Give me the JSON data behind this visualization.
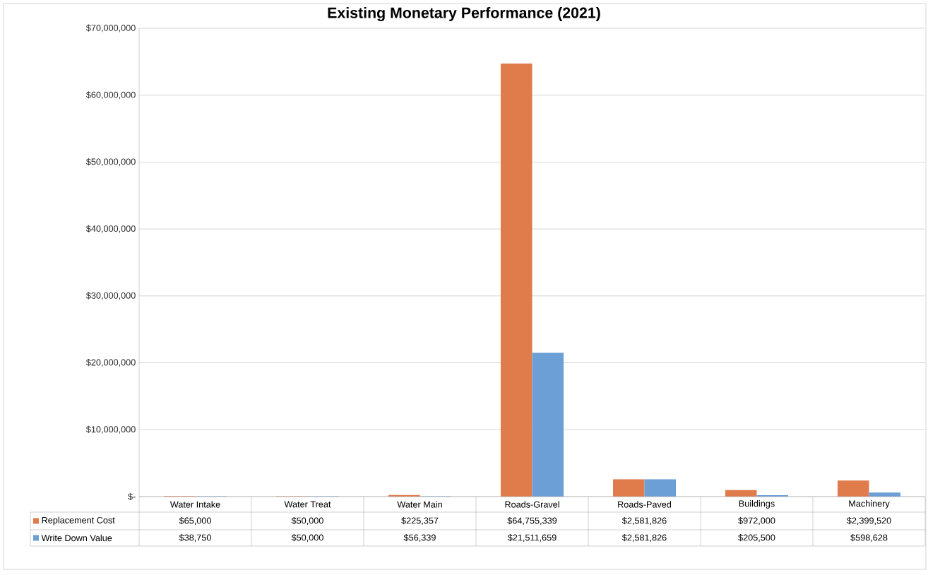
{
  "chart_data": {
    "type": "bar",
    "title": "Existing Monetary Performance (2021)",
    "categories": [
      "Water Intake",
      "Water Treat",
      "Water Main",
      "Roads-Gravel",
      "Roads-Paved",
      "Buildings",
      "Machinery"
    ],
    "series": [
      {
        "name": "Replacement Cost",
        "color": "#e07b4c",
        "values": [
          65000,
          50000,
          225357,
          64755339,
          2581826,
          972000,
          2399520
        ],
        "value_labels": [
          "$65,000",
          "$50,000",
          "$225,357",
          "$64,755,339",
          "$2,581,826",
          "$972,000",
          "$2,399,520"
        ]
      },
      {
        "name": "Write Down Value",
        "color": "#6b9fd6",
        "values": [
          38750,
          50000,
          56339,
          21511659,
          2581826,
          205500,
          598628
        ],
        "value_labels": [
          "$38,750",
          "$50,000",
          "$56,339",
          "$21,511,659",
          "$2,581,826",
          "$205,500",
          "$598,628"
        ]
      }
    ],
    "ylim": [
      0,
      70000000
    ],
    "yticks": [
      {
        "value": 0,
        "label": "$-"
      },
      {
        "value": 10000000,
        "label": "$10,000,000"
      },
      {
        "value": 20000000,
        "label": "$20,000,000"
      },
      {
        "value": 30000000,
        "label": "$30,000,000"
      },
      {
        "value": 40000000,
        "label": "$40,000,000"
      },
      {
        "value": 50000000,
        "label": "$50,000,000"
      },
      {
        "value": 60000000,
        "label": "$60,000,000"
      },
      {
        "value": 70000000,
        "label": "$70,000,000"
      }
    ],
    "grid": "y",
    "legend": "bottom"
  }
}
